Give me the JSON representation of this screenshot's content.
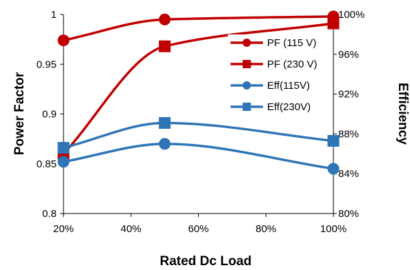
{
  "chart_data": {
    "type": "line",
    "title": "",
    "xlabel": "Rated Dc Load",
    "ylabel": "Power Factor",
    "y2label": "Efficiency",
    "x_tick_labels": [
      "20%",
      "40%",
      "60%",
      "80%",
      "100%"
    ],
    "x_ticks": [
      20,
      40,
      60,
      80,
      100
    ],
    "xlim": [
      20,
      100
    ],
    "y_tick_labels": [
      "0.8",
      "0.85",
      "0.9",
      "0.95",
      "1"
    ],
    "y_ticks": [
      0.8,
      0.85,
      0.9,
      0.95,
      1.0
    ],
    "ylim": [
      0.8,
      1.0
    ],
    "y2_tick_labels": [
      "80%",
      "84%",
      "88%",
      "92%",
      "96%",
      "100%"
    ],
    "y2_ticks": [
      80,
      84,
      88,
      92,
      96,
      100
    ],
    "y2lim": [
      80,
      100
    ],
    "grid": false,
    "legend_position": "right",
    "series": [
      {
        "name": "PF (115 V)",
        "axis": "left",
        "marker": "circle",
        "color": "#C00000",
        "x": [
          20,
          50,
          100
        ],
        "values": [
          0.974,
          0.995,
          0.998
        ]
      },
      {
        "name": "PF (230 V)",
        "axis": "left",
        "marker": "square",
        "color": "#C00000",
        "x": [
          20,
          50,
          100
        ],
        "values": [
          0.86,
          0.968,
          0.991
        ]
      },
      {
        "name": "Eff(115V)",
        "axis": "right",
        "marker": "circle",
        "color": "#2E75B6",
        "x": [
          20,
          50,
          100
        ],
        "values": [
          85.2,
          87.0,
          84.5
        ]
      },
      {
        "name": "Eff(230V)",
        "axis": "right",
        "marker": "square",
        "color": "#2E75B6",
        "x": [
          20,
          50,
          100
        ],
        "values": [
          86.6,
          89.1,
          87.3
        ]
      }
    ]
  }
}
